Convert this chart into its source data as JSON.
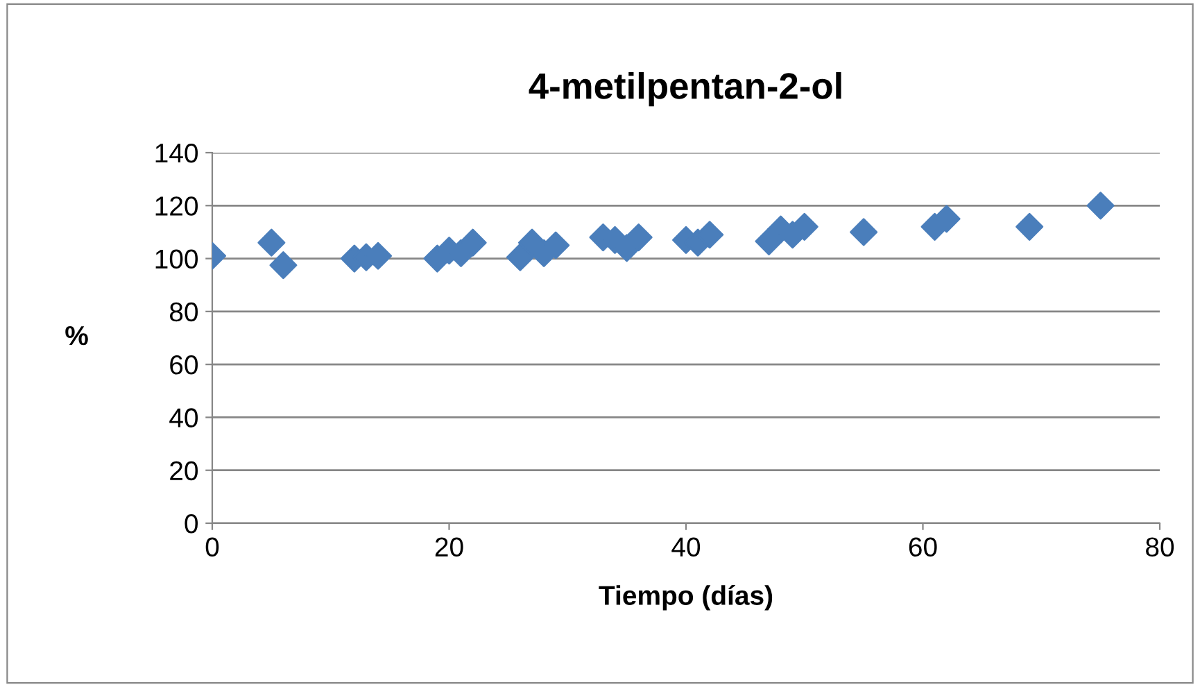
{
  "chart_data": {
    "type": "scatter",
    "title": "4-metilpentan-2-ol",
    "xlabel": "Tiempo (días)",
    "ylabel": "%",
    "x": [
      0,
      5,
      6,
      12,
      13,
      14,
      19,
      20,
      21,
      22,
      26,
      27,
      28,
      29,
      33,
      34,
      35,
      36,
      40,
      41,
      42,
      47,
      48,
      49,
      50,
      55,
      61,
      62,
      69,
      75
    ],
    "series": [
      {
        "color": "#4a7ebb",
        "values": [
          101,
          106,
          97.5,
          100,
          100.5,
          101,
          100,
          103,
          102,
          106,
          100.5,
          106,
          102,
          105,
          108,
          107,
          104,
          108,
          107,
          106,
          109,
          106.5,
          111,
          109,
          112,
          110,
          112,
          115,
          112,
          120
        ]
      }
    ],
    "xlim": [
      0,
      80
    ],
    "xticks": [
      0,
      20,
      40,
      60,
      80
    ],
    "ylim": [
      0,
      140
    ],
    "yticks": [
      0,
      20,
      40,
      60,
      80,
      100,
      120,
      140
    ],
    "grid": "y",
    "marker": "diamond",
    "legend": false
  }
}
